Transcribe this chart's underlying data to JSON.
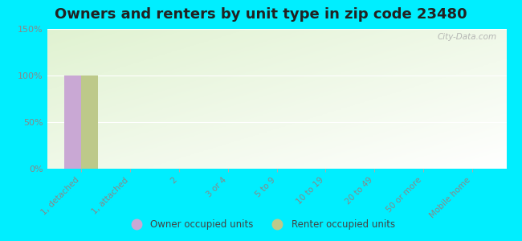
{
  "title": "Owners and renters by unit type in zip code 23480",
  "categories": [
    "1, detached",
    "1, attached",
    "2",
    "3 or 4",
    "5 to 9",
    "10 to 19",
    "20 to 49",
    "50 or more",
    "Mobile home"
  ],
  "owner_values": [
    100,
    0,
    0,
    0,
    0,
    0,
    0,
    0,
    0
  ],
  "renter_values": [
    100,
    0,
    0,
    0,
    0,
    0,
    0,
    0,
    0
  ],
  "owner_color": "#c9a8d4",
  "renter_color": "#bdc98a",
  "owner_label": "Owner occupied units",
  "renter_label": "Renter occupied units",
  "ylim": [
    0,
    150
  ],
  "yticks": [
    0,
    50,
    100,
    150
  ],
  "ytick_labels": [
    "0%",
    "50%",
    "100%",
    "150%"
  ],
  "outer_bg": "#00eeff",
  "title_fontsize": 13,
  "watermark": "City-Data.com",
  "bar_width": 0.35
}
